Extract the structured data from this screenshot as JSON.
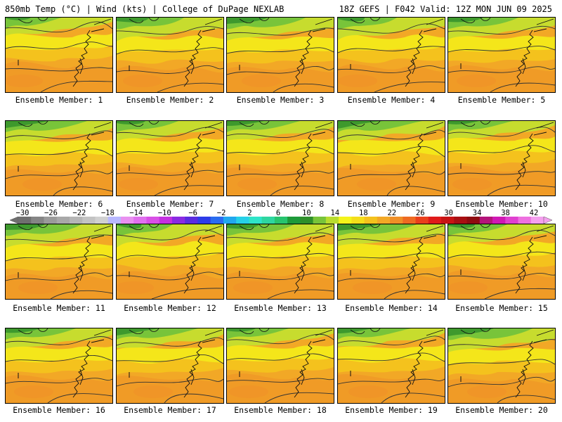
{
  "header": {
    "left": "850mb Temp (°C) | Wind (kts) | College of DuPage NEXLAB",
    "right": "18Z GEFS | F042 Valid: 12Z MON JUN 09 2025"
  },
  "colors": {
    "green_dark": "#2f8f2a",
    "green": "#78c43a",
    "yellow_green": "#c7dc2e",
    "yellow": "#f4e61a",
    "orange_light": "#f4c21d",
    "orange": "#f2a826",
    "orange_dark": "#ef8f27",
    "contour": "#333333",
    "coast": "#111111"
  },
  "colorbar": {
    "tick_labels": [
      "−30",
      "−26",
      "−22",
      "−18",
      "−14",
      "−10",
      "−6",
      "−2",
      "2",
      "6",
      "10",
      "14",
      "18",
      "22",
      "26",
      "30",
      "34",
      "38",
      "42"
    ],
    "range": [
      -30,
      42
    ],
    "step": 2,
    "colors": [
      "#6f6f6f",
      "#858585",
      "#9a9a9a",
      "#a8a8a8",
      "#b5b5b5",
      "#c3c3c3",
      "#d0d0d0",
      "#b8b8ff",
      "#e890f0",
      "#e070ee",
      "#d850e6",
      "#c430e0",
      "#8a2be2",
      "#5a2ce0",
      "#2d3ce8",
      "#2a6cf0",
      "#21a8ee",
      "#26d0e8",
      "#2ee4c8",
      "#2ed6a0",
      "#27c46e",
      "#1e9a3a",
      "#2f8f2a",
      "#78c43a",
      "#b8dc2e",
      "#f4f41a",
      "#f4de1a",
      "#f4c21d",
      "#f2a826",
      "#ef8f27",
      "#ee6a22",
      "#ea3f1c",
      "#e01a1a",
      "#c81414",
      "#a80f12",
      "#8f0c10",
      "#b4147a",
      "#d018b4",
      "#e040d0",
      "#ee70e0",
      "#f4a0ee"
    ]
  },
  "members": [
    {
      "label": "Ensemble Member: 1"
    },
    {
      "label": "Ensemble Member: 2"
    },
    {
      "label": "Ensemble Member: 3"
    },
    {
      "label": "Ensemble Member: 4"
    },
    {
      "label": "Ensemble Member: 5"
    },
    {
      "label": "Ensemble Member: 6"
    },
    {
      "label": "Ensemble Member: 7"
    },
    {
      "label": "Ensemble Member: 8"
    },
    {
      "label": "Ensemble Member: 9"
    },
    {
      "label": "Ensemble Member: 10"
    },
    {
      "label": "Ensemble Member: 11"
    },
    {
      "label": "Ensemble Member: 12"
    },
    {
      "label": "Ensemble Member: 13"
    },
    {
      "label": "Ensemble Member: 14"
    },
    {
      "label": "Ensemble Member: 15"
    },
    {
      "label": "Ensemble Member: 16"
    },
    {
      "label": "Ensemble Member: 17"
    },
    {
      "label": "Ensemble Member: 18"
    },
    {
      "label": "Ensemble Member: 19"
    },
    {
      "label": "Ensemble Member: 20"
    }
  ]
}
